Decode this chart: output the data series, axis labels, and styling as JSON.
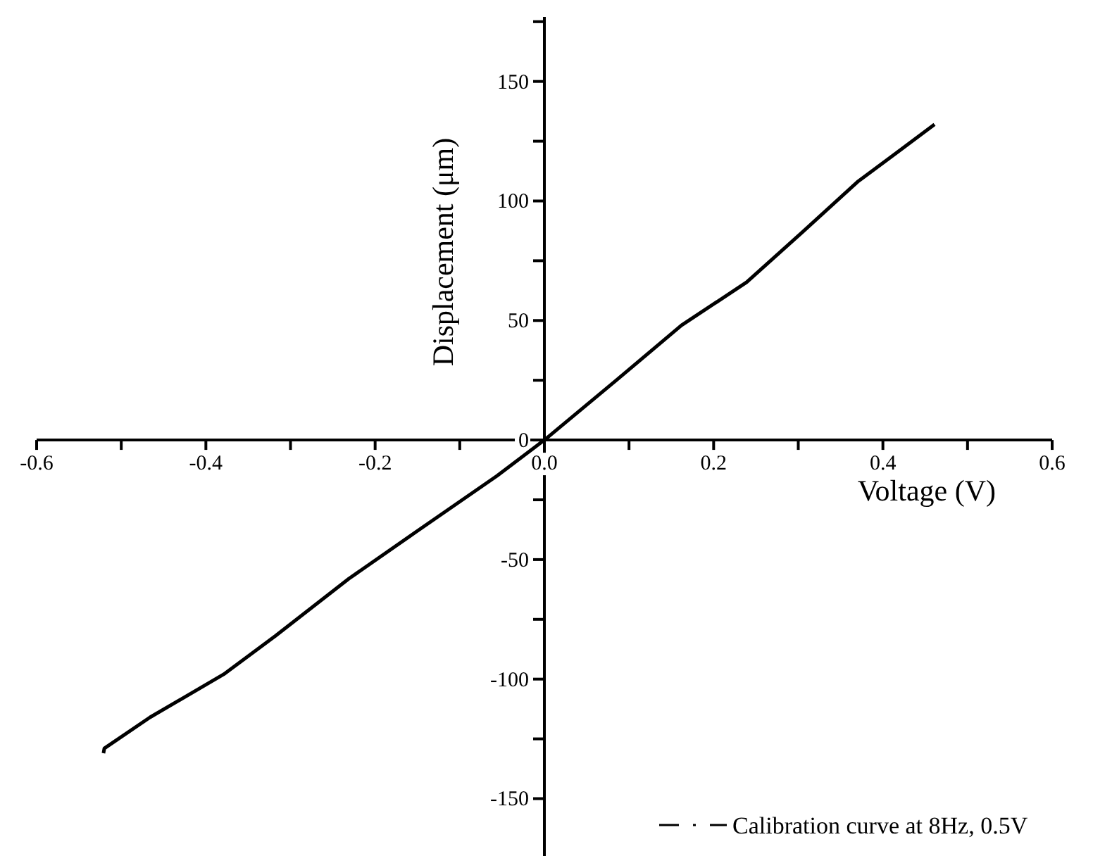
{
  "chart_data": {
    "type": "line",
    "xlabel": "Voltage (V)",
    "ylabel": "Displacement (μm)",
    "legend": "bottom right",
    "marker": "none",
    "xlim": [
      -0.6,
      0.6
    ],
    "xticks": [
      {
        "value": -0.6,
        "label": "-0.6"
      },
      {
        "value": -0.5,
        "label": null
      },
      {
        "value": -0.4,
        "label": "-0.4"
      },
      {
        "value": -0.3,
        "label": null
      },
      {
        "value": -0.2,
        "label": "-0.2"
      },
      {
        "value": -0.1,
        "label": null
      },
      {
        "value": 0,
        "label": "0.0"
      },
      {
        "value": 0.1,
        "label": null
      },
      {
        "value": 0.2,
        "label": "0.2"
      },
      {
        "value": 0.3,
        "label": null
      },
      {
        "value": 0.4,
        "label": "0.4"
      },
      {
        "value": 0.5,
        "label": null
      },
      {
        "value": 0.6,
        "label": "0.6"
      }
    ],
    "ylim": [
      -174,
      177
    ],
    "yticks": [
      -150,
      {
        "value": -125,
        "label": null
      },
      -100,
      {
        "value": -75,
        "label": null
      },
      -50,
      {
        "value": -25,
        "label": null
      },
      0,
      {
        "value": 25,
        "label": null
      },
      50,
      {
        "value": 75,
        "label": null
      },
      100,
      {
        "value": 125,
        "label": null
      },
      150,
      {
        "value": 175,
        "label": null
      }
    ],
    "series": [
      {
        "name": "Calibration curve at 8Hz, 0.5V",
        "color": "#000000",
        "x": [
          -0.521,
          -0.52,
          -0.466,
          -0.379,
          -0.318,
          -0.231,
          -0.154,
          -0.056,
          0,
          0.085,
          0.162,
          0.239,
          0.305,
          0.37,
          0.461
        ],
        "values": [
          -131,
          -129,
          -116,
          -98,
          -82,
          -58,
          -39,
          -15,
          0,
          25,
          48,
          66,
          87,
          108,
          132
        ]
      }
    ]
  }
}
